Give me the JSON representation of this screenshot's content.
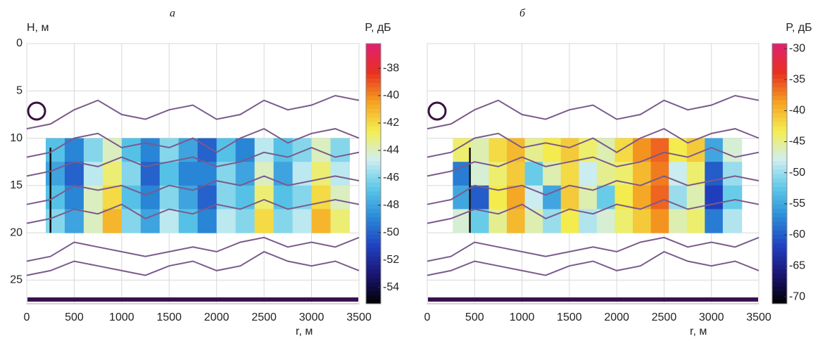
{
  "chart_data": [
    {
      "type": "heatmap",
      "title": "а",
      "ylabel": "H, м",
      "xlabel": "r, м",
      "colorbar_label": "P, дБ",
      "xlim": [
        0,
        3500
      ],
      "ylim": [
        27.5,
        0
      ],
      "xticks": [
        0,
        500,
        1000,
        1500,
        2000,
        2500,
        3000,
        3500
      ],
      "yticks": [
        0,
        5,
        10,
        15,
        20,
        25
      ],
      "ytick_labels": true,
      "clim": [
        -55.2,
        -36.2
      ],
      "cticks": [
        -38,
        -40,
        -42,
        -44,
        -46,
        -48,
        -50,
        -52,
        -54
      ],
      "colormap": [
        "#000000",
        "#1a1470",
        "#2040c0",
        "#2a8ad8",
        "#5cc8e8",
        "#cfeef0",
        "#f4ee50",
        "#f5a020",
        "#e83020",
        "#e02070"
      ],
      "x_edges": [
        200,
        400,
        600,
        800,
        1000,
        1200,
        1400,
        1600,
        1800,
        2000,
        2200,
        2400,
        2600,
        2800,
        3000,
        3200,
        3400
      ],
      "y_edges": [
        10,
        12.5,
        15,
        17.5,
        20
      ],
      "z": [
        [
          -47,
          -49,
          -46,
          -44,
          -47,
          -49,
          -46,
          -48,
          -50,
          -47,
          -49,
          -45,
          -47,
          -46,
          -44,
          -46
        ],
        [
          -48,
          -50,
          -45,
          -43,
          -46,
          -50,
          -47,
          -49,
          -49,
          -46,
          -48,
          -44,
          -48,
          -45,
          -43,
          -45
        ],
        [
          -47,
          -49,
          -44,
          -42,
          -47,
          -49,
          -46,
          -48,
          -50,
          -46,
          -47,
          -43,
          -47,
          -46,
          -42,
          -44
        ],
        [
          -46,
          -48,
          -44,
          -41,
          -46,
          -48,
          -45,
          -47,
          -49,
          -45,
          -46,
          -42,
          -46,
          -45,
          -41,
          -43
        ]
      ],
      "line_color": "#7a5a8c",
      "line_x": [
        0,
        250,
        500,
        750,
        1000,
        1250,
        1500,
        1750,
        2000,
        2250,
        2500,
        2750,
        3000,
        3250,
        3500
      ],
      "lines": [
        [
          9,
          8.5,
          7,
          6,
          7.5,
          8,
          7,
          6.5,
          8,
          7.5,
          6,
          7,
          6.5,
          5.5,
          6
        ],
        [
          12,
          11.5,
          10,
          9.5,
          11,
          10.5,
          11,
          10,
          11.5,
          10,
          9,
          10.5,
          9.5,
          9,
          10
        ],
        [
          14,
          13.5,
          12.5,
          13,
          12,
          13,
          12.5,
          12,
          13,
          12.5,
          11.5,
          12,
          11,
          12,
          11.5
        ],
        [
          17,
          16.5,
          15,
          15.5,
          15,
          16,
          15,
          15.5,
          14.5,
          15,
          14,
          15,
          14.5,
          14,
          14.5
        ],
        [
          19,
          18.5,
          17.5,
          18,
          17,
          18.5,
          17.5,
          18,
          17,
          17.5,
          16.5,
          17.5,
          17,
          16.5,
          17
        ],
        [
          23,
          22.5,
          21,
          21.5,
          22,
          22.5,
          22,
          21.5,
          22,
          21,
          20.5,
          21.5,
          21,
          21.5,
          20.5
        ],
        [
          24.5,
          24,
          23,
          23.5,
          24,
          24.5,
          23.5,
          23,
          24,
          23.5,
          22,
          23,
          23.5,
          23,
          24
        ]
      ]
    },
    {
      "type": "heatmap",
      "title": "б",
      "xlabel": "r, м",
      "colorbar_label": "P, дБ",
      "xlim": [
        0,
        3500
      ],
      "ylim": [
        27.5,
        0
      ],
      "xticks": [
        0,
        500,
        1000,
        1500,
        2000,
        2500,
        3000,
        3500
      ],
      "yticks": [
        0,
        5,
        10,
        15,
        20,
        25
      ],
      "ytick_labels": false,
      "clim": [
        -71.1,
        -29.2
      ],
      "cticks": [
        -30,
        -35,
        -40,
        -45,
        -50,
        -55,
        -60,
        -65,
        -70
      ],
      "colormap": [
        "#000000",
        "#1a1470",
        "#2040c0",
        "#2a8ad8",
        "#5cc8e8",
        "#cfeef0",
        "#f4ee50",
        "#f5a020",
        "#e83020",
        "#e02070"
      ],
      "x_edges": [
        270,
        460,
        650,
        840,
        1030,
        1220,
        1410,
        1600,
        1790,
        1980,
        2170,
        2360,
        2550,
        2740,
        2930,
        3120,
        3320
      ],
      "y_edges": [
        10,
        12.5,
        15,
        17.5,
        20
      ],
      "z": [
        [
          -44,
          -46,
          -42,
          -40,
          -45,
          -43,
          -41,
          -44,
          -46,
          -42,
          -38,
          -36,
          -43,
          -41,
          -55,
          -47
        ],
        [
          -58,
          -47,
          -44,
          -41,
          -52,
          -46,
          -42,
          -48,
          -45,
          -44,
          -40,
          -37,
          -48,
          -44,
          -60,
          -50
        ],
        [
          -55,
          -60,
          -43,
          -39,
          -48,
          -55,
          -41,
          -46,
          -52,
          -43,
          -39,
          -36,
          -50,
          -46,
          -62,
          -52
        ],
        [
          -47,
          -52,
          -45,
          -40,
          -46,
          -50,
          -43,
          -49,
          -47,
          -44,
          -41,
          -38,
          -46,
          -44,
          -58,
          -49
        ]
      ],
      "line_color": "#7a5a8c",
      "line_x": [
        0,
        250,
        500,
        750,
        1000,
        1250,
        1500,
        1750,
        2000,
        2250,
        2500,
        2750,
        3000,
        3250,
        3500
      ],
      "lines": [
        [
          9,
          8.5,
          7,
          6,
          7.5,
          8,
          7,
          6.5,
          8,
          7.5,
          6,
          7,
          6.5,
          5.5,
          6
        ],
        [
          12,
          11.5,
          10,
          9.5,
          11,
          10.5,
          11,
          10,
          11.5,
          10,
          9,
          10.5,
          9.5,
          9,
          10
        ],
        [
          14,
          13.5,
          12.5,
          13,
          12,
          13,
          12.5,
          12,
          13,
          12.5,
          11.5,
          12,
          11,
          12,
          11.5
        ],
        [
          17,
          16.5,
          15,
          15.5,
          15,
          16,
          15,
          15.5,
          14.5,
          15,
          14,
          15,
          14.5,
          14,
          14.5
        ],
        [
          19,
          18.5,
          17.5,
          18,
          17,
          18.5,
          17.5,
          18,
          17,
          17.5,
          16.5,
          17.5,
          17,
          16.5,
          17
        ],
        [
          23,
          22.5,
          21,
          21.5,
          22,
          22.5,
          22,
          21.5,
          22,
          21,
          20.5,
          21.5,
          21,
          21.5,
          20.5
        ],
        [
          24.5,
          24,
          23,
          23.5,
          24,
          24.5,
          23.5,
          23,
          24,
          23.5,
          22,
          23,
          23.5,
          23,
          24
        ]
      ]
    }
  ]
}
